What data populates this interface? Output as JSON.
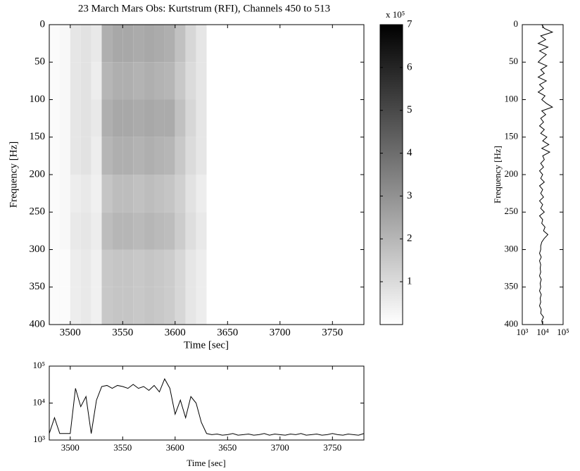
{
  "chart_data": [
    {
      "type": "heatmap",
      "title": "23 March Mars Obs: Kurtstrum (RFI), Channels 450 to 513",
      "xlabel": "Time [sec]",
      "ylabel": "Frequency [Hz]",
      "xlim": [
        3480,
        3780
      ],
      "ylim": [
        0,
        400
      ],
      "y_reversed": true,
      "xticks": [
        3500,
        3550,
        3600,
        3650,
        3700,
        3750
      ],
      "yticks": [
        0,
        50,
        100,
        150,
        200,
        250,
        300,
        350,
        400
      ],
      "xbins": [
        3480,
        3490,
        3500,
        3510,
        3520,
        3530,
        3540,
        3550,
        3560,
        3570,
        3580,
        3590,
        3600,
        3610,
        3620,
        3630,
        3640,
        3650,
        3660,
        3670,
        3680,
        3690,
        3700,
        3710,
        3720,
        3730,
        3740,
        3750,
        3760,
        3770,
        3780
      ],
      "ybins": [
        0,
        50,
        100,
        150,
        200,
        250,
        300,
        350,
        400
      ],
      "z": [
        [
          0.1,
          0.2,
          0.7,
          0.8,
          0.6,
          2.2,
          2.4,
          2.4,
          2.3,
          2.4,
          2.3,
          2.2,
          1.7,
          1.1,
          0.7,
          0,
          0,
          0,
          0,
          0,
          0,
          0,
          0,
          0,
          0,
          0,
          0,
          0,
          0,
          0
        ],
        [
          0.1,
          0.2,
          0.7,
          0.8,
          0.5,
          2.0,
          2.2,
          2.2,
          2.1,
          2.2,
          2.1,
          2.0,
          1.5,
          1.0,
          0.7,
          0,
          0,
          0,
          0,
          0,
          0,
          0,
          0,
          0,
          0,
          0,
          0,
          0,
          0,
          0
        ],
        [
          0.1,
          0.2,
          0.7,
          0.8,
          0.6,
          2.2,
          2.4,
          2.4,
          2.3,
          2.4,
          2.3,
          2.3,
          1.7,
          1.1,
          0.7,
          0,
          0,
          0,
          0,
          0,
          0,
          0,
          0,
          0,
          0,
          0,
          0,
          0,
          0,
          0
        ],
        [
          0.1,
          0.2,
          0.7,
          0.8,
          0.5,
          2.0,
          2.2,
          2.2,
          2.1,
          2.2,
          2.1,
          2.0,
          1.5,
          1.0,
          0.7,
          0,
          0,
          0,
          0,
          0,
          0,
          0,
          0,
          0,
          0,
          0,
          0,
          0,
          0,
          0
        ],
        [
          0.1,
          0.2,
          0.5,
          0.6,
          0.4,
          1.6,
          1.8,
          1.8,
          1.7,
          1.8,
          1.7,
          1.6,
          1.3,
          0.8,
          0.5,
          0,
          0,
          0,
          0,
          0,
          0,
          0,
          0,
          0,
          0,
          0,
          0,
          0,
          0,
          0
        ],
        [
          0.1,
          0.2,
          0.6,
          0.7,
          0.5,
          1.8,
          2.0,
          2.0,
          1.9,
          2.0,
          1.9,
          1.8,
          1.4,
          0.9,
          0.6,
          0,
          0,
          0,
          0,
          0,
          0,
          0,
          0,
          0,
          0,
          0,
          0,
          0,
          0,
          0
        ],
        [
          0.1,
          0.1,
          0.5,
          0.6,
          0.4,
          1.5,
          1.6,
          1.6,
          1.5,
          1.6,
          1.5,
          1.4,
          1.1,
          0.7,
          0.5,
          0,
          0,
          0,
          0,
          0,
          0,
          0,
          0,
          0,
          0,
          0,
          0,
          0,
          0,
          0
        ],
        [
          0.1,
          0.1,
          0.5,
          0.6,
          0.4,
          1.5,
          1.6,
          1.6,
          1.5,
          1.6,
          1.5,
          1.4,
          1.1,
          0.7,
          0.5,
          0,
          0,
          0,
          0,
          0,
          0,
          0,
          0,
          0,
          0,
          0,
          0,
          0,
          0,
          0
        ]
      ],
      "colormap": [
        "#ffffff",
        "#000000"
      ],
      "clim": [
        0,
        7
      ],
      "cticks": [
        1,
        2,
        3,
        4,
        5,
        6,
        7
      ],
      "cscale_label": "x 10⁵"
    },
    {
      "type": "line",
      "orientation": "vertical",
      "ylabel": "Frequency [Hz]",
      "color": "#000000",
      "xlim": [
        1000,
        100000
      ],
      "xlog": true,
      "xticks": [
        {
          "value": 1000,
          "label": "10³"
        },
        {
          "value": 10000,
          "label": "10⁴"
        },
        {
          "value": 100000,
          "label": "10⁵"
        }
      ],
      "ylim": [
        0,
        400
      ],
      "y_reversed": true,
      "yticks": [
        0,
        50,
        100,
        150,
        200,
        250,
        300,
        350,
        400
      ],
      "y": [
        0,
        5,
        10,
        15,
        20,
        25,
        30,
        35,
        40,
        45,
        50,
        55,
        60,
        65,
        70,
        75,
        80,
        85,
        90,
        95,
        100,
        105,
        110,
        115,
        120,
        125,
        130,
        135,
        140,
        145,
        150,
        155,
        160,
        165,
        170,
        175,
        180,
        185,
        190,
        195,
        200,
        205,
        210,
        215,
        220,
        225,
        230,
        235,
        240,
        245,
        250,
        255,
        260,
        265,
        270,
        275,
        280,
        285,
        290,
        295,
        300,
        305,
        310,
        315,
        320,
        325,
        330,
        335,
        340,
        345,
        350,
        355,
        360,
        365,
        370,
        375,
        380,
        385,
        390,
        395,
        400
      ],
      "values": [
        9000,
        12000,
        30000,
        8000,
        14000,
        6000,
        18000,
        7000,
        15000,
        9000,
        6000,
        16000,
        8000,
        12000,
        6000,
        15000,
        7000,
        11000,
        6000,
        13000,
        9000,
        15000,
        30000,
        9000,
        14000,
        8000,
        11000,
        7000,
        12000,
        8000,
        16000,
        10000,
        20000,
        9000,
        22000,
        10000,
        12000,
        8000,
        11000,
        7000,
        10000,
        8000,
        12000,
        7000,
        10000,
        8000,
        11000,
        7000,
        10000,
        8000,
        12000,
        7000,
        10000,
        9000,
        13000,
        11000,
        18000,
        12000,
        9000,
        8000,
        8000,
        7000,
        8500,
        7000,
        8000,
        7500,
        8000,
        7000,
        8500,
        7500,
        8000,
        7000,
        8500,
        7500,
        8000,
        7000,
        8500,
        8000,
        11000,
        9000,
        10000
      ]
    },
    {
      "type": "line",
      "orientation": "horizontal",
      "xlabel": "Time [sec]",
      "color": "#000000",
      "xlim": [
        3480,
        3780
      ],
      "xticks": [
        3500,
        3550,
        3600,
        3650,
        3700,
        3750
      ],
      "ylim": [
        1000,
        100000
      ],
      "ylog": true,
      "yticks": [
        {
          "value": 1000,
          "label": "10³"
        },
        {
          "value": 10000,
          "label": "10⁴"
        },
        {
          "value": 100000,
          "label": "10⁵"
        }
      ],
      "x": [
        3480,
        3485,
        3490,
        3495,
        3500,
        3505,
        3510,
        3515,
        3520,
        3525,
        3530,
        3535,
        3540,
        3545,
        3550,
        3555,
        3560,
        3565,
        3570,
        3575,
        3580,
        3585,
        3590,
        3595,
        3600,
        3605,
        3610,
        3615,
        3620,
        3625,
        3630,
        3635,
        3640,
        3645,
        3650,
        3655,
        3660,
        3665,
        3670,
        3675,
        3680,
        3685,
        3690,
        3695,
        3700,
        3705,
        3710,
        3715,
        3720,
        3725,
        3730,
        3735,
        3740,
        3745,
        3750,
        3755,
        3760,
        3765,
        3770,
        3775,
        3780
      ],
      "values": [
        1500,
        4000,
        1500,
        1500,
        1500,
        25000,
        8000,
        15000,
        1500,
        12000,
        28000,
        30000,
        25000,
        30000,
        28000,
        25000,
        32000,
        25000,
        28000,
        22000,
        30000,
        20000,
        45000,
        25000,
        5000,
        12000,
        4000,
        15000,
        10000,
        3000,
        1500,
        1400,
        1450,
        1350,
        1400,
        1500,
        1350,
        1400,
        1450,
        1350,
        1400,
        1500,
        1350,
        1450,
        1400,
        1350,
        1450,
        1400,
        1500,
        1350,
        1400,
        1450,
        1350,
        1400,
        1500,
        1400,
        1350,
        1450,
        1400,
        1350,
        1500
      ]
    }
  ]
}
